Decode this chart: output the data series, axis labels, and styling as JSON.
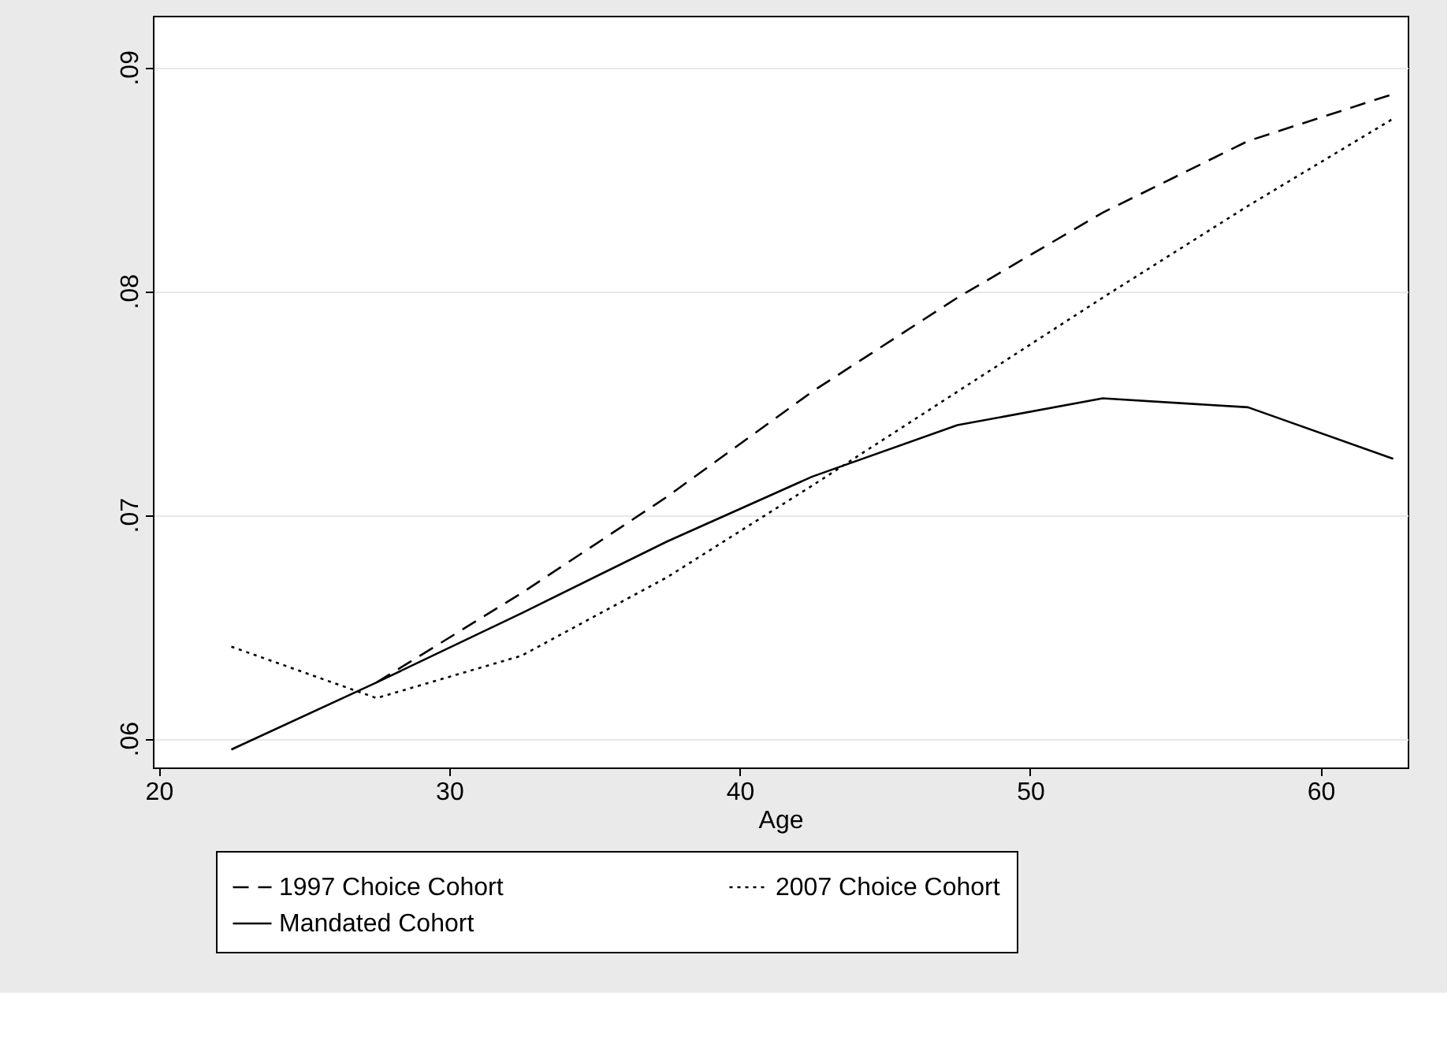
{
  "chart_data": {
    "type": "line",
    "xlabel": "Age",
    "x": [
      22.5,
      27.5,
      32.5,
      37.5,
      42.5,
      47.5,
      52.5,
      57.5,
      62.5
    ],
    "series": [
      {
        "name": "1997 Choice Cohort",
        "color": "#000000",
        "line_style": "dashed",
        "values": [
          null,
          0.0625,
          0.0665,
          0.0708,
          0.0755,
          0.0797,
          0.0835,
          0.0867,
          0.0888
        ]
      },
      {
        "name": "Mandated Cohort",
        "color": "#000000",
        "line_style": "solid",
        "values": [
          0.0595,
          0.0625,
          0.0656,
          0.0688,
          0.0717,
          0.074,
          0.0752,
          0.0748,
          0.0725
        ]
      },
      {
        "name": "2007 Choice Cohort",
        "color": "#000000",
        "line_style": "dotted",
        "values": [
          0.0641,
          0.0618,
          0.0637,
          0.0672,
          0.0713,
          0.0755,
          0.0797,
          0.0838,
          0.0877
        ]
      }
    ],
    "xlim": [
      19.8,
      63.0
    ],
    "xticks": [
      20,
      30,
      40,
      50,
      60
    ],
    "ylim": [
      0.0587,
      0.0923
    ],
    "yticks": [
      {
        "value": 0.06,
        "label": ".06"
      },
      {
        "value": 0.07,
        "label": ".07"
      },
      {
        "value": 0.08,
        "label": ".08"
      },
      {
        "value": 0.09,
        "label": ".09"
      }
    ],
    "grid": "y",
    "legend": "bottom",
    "marker": "none"
  }
}
